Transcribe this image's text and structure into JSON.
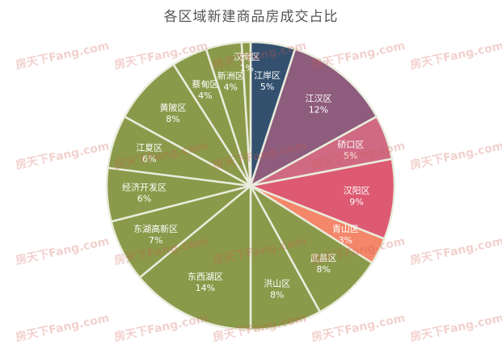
{
  "chart_data": {
    "type": "pie",
    "title": "各区域新建商品房成交占比",
    "slices": [
      {
        "label": "江岸区",
        "value": 5,
        "pct_label": "5%",
        "color": "#33506f"
      },
      {
        "label": "江汉区",
        "value": 12,
        "pct_label": "12%",
        "color": "#8e5c7c"
      },
      {
        "label": "硚口区",
        "value": 5,
        "pct_label": "5%",
        "color": "#cf6a82"
      },
      {
        "label": "汉阳区",
        "value": 9,
        "pct_label": "9%",
        "color": "#dd5a72"
      },
      {
        "label": "青山区",
        "value": 3,
        "pct_label": "3%",
        "color": "#f4876a"
      },
      {
        "label": "武昌区",
        "value": 8,
        "pct_label": "8%",
        "color": "#8a9a4a"
      },
      {
        "label": "洪山区",
        "value": 8,
        "pct_label": "8%",
        "color": "#8a9a4a"
      },
      {
        "label": "东西湖区",
        "value": 14,
        "pct_label": "14%",
        "color": "#8a9a4a"
      },
      {
        "label": "东湖高新区",
        "value": 7,
        "pct_label": "7%",
        "color": "#8a9a4a"
      },
      {
        "label": "经济开发区",
        "value": 6,
        "pct_label": "6%",
        "color": "#8a9a4a"
      },
      {
        "label": "江夏区",
        "value": 6,
        "pct_label": "6%",
        "color": "#8a9a4a"
      },
      {
        "label": "黄陂区",
        "value": 8,
        "pct_label": "8%",
        "color": "#8a9a4a"
      },
      {
        "label": "蔡甸区",
        "value": 4,
        "pct_label": "4%",
        "color": "#8a9a4a"
      },
      {
        "label": "新洲区",
        "value": 4,
        "pct_label": "4%",
        "color": "#8a9a4a"
      },
      {
        "label": "汉南区",
        "value": 1,
        "pct_label": "1%",
        "color": "#8a9a4a"
      }
    ]
  },
  "watermark": {
    "text": "房天下Fang.com"
  }
}
